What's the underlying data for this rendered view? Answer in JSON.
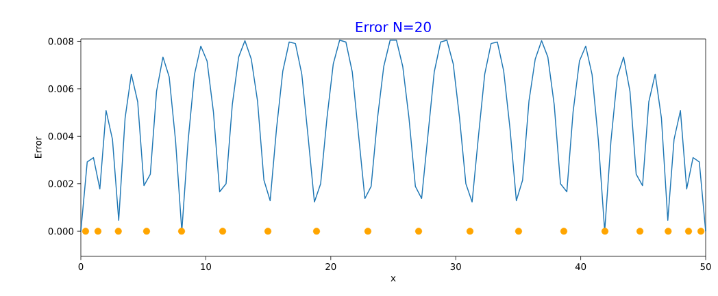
{
  "chart_data": {
    "type": "line",
    "title": "Error N=20",
    "xlabel": "x",
    "ylabel": "Error",
    "xlim": [
      0,
      50
    ],
    "ylim": [
      -0.00106,
      0.0081
    ],
    "xticks": [
      0,
      10,
      20,
      30,
      40,
      50
    ],
    "yticks": [
      {
        "value": 0,
        "label": "0.000"
      },
      {
        "value": 0.002,
        "label": "0.002"
      },
      {
        "value": 0.004,
        "label": "0.004"
      },
      {
        "value": 0.006,
        "label": "0.006"
      },
      {
        "value": 0.008,
        "label": "0.008"
      }
    ],
    "series": [
      {
        "color": "#1f77b4",
        "marker": "none",
        "x": [
          0,
          0.51,
          1.01,
          1.52,
          2.02,
          2.53,
          3.03,
          3.54,
          4.04,
          4.55,
          5.05,
          5.56,
          6.06,
          6.57,
          7.07,
          7.58,
          8.08,
          8.59,
          9.09,
          9.6,
          10.1,
          10.61,
          11.11,
          11.62,
          12.12,
          12.63,
          13.13,
          13.64,
          14.14,
          14.65,
          15.15,
          15.66,
          16.16,
          16.67,
          17.17,
          17.68,
          18.18,
          18.69,
          19.19,
          19.7,
          20.2,
          20.71,
          21.21,
          21.72,
          22.22,
          22.73,
          23.23,
          23.74,
          24.24,
          24.75,
          25.25,
          25.76,
          26.26,
          26.77,
          27.27,
          27.78,
          28.28,
          28.79,
          29.29,
          29.8,
          30.3,
          30.81,
          31.31,
          31.82,
          32.32,
          32.83,
          33.33,
          33.84,
          34.34,
          34.85,
          35.35,
          35.86,
          36.36,
          36.87,
          37.37,
          37.88,
          38.38,
          38.89,
          39.39,
          39.9,
          40.4,
          40.91,
          41.41,
          41.92,
          42.42,
          42.93,
          43.43,
          43.94,
          44.44,
          44.95,
          45.45,
          45.96,
          46.46,
          46.97,
          47.47,
          47.98,
          48.48,
          48.99,
          49.49,
          50
        ],
        "values": [
          0,
          0.00292,
          0.0031,
          0.00178,
          0.00508,
          0.00387,
          0.00046,
          0.00476,
          0.00662,
          0.00545,
          0.00192,
          0.0024,
          0.0059,
          0.00734,
          0.0065,
          0.0038,
          0,
          0.00384,
          0.0066,
          0.0078,
          0.00717,
          0.00502,
          0.00166,
          0.002,
          0.00533,
          0.00734,
          0.00803,
          0.00725,
          0.00548,
          0.00215,
          0.00129,
          0.00433,
          0.00674,
          0.00797,
          0.00791,
          0.00662,
          0.00401,
          0.00123,
          0.002,
          0.00479,
          0.00705,
          0.00805,
          0.00797,
          0.00671,
          0.00407,
          0.00138,
          0.00189,
          0.00476,
          0.00694,
          0.00805,
          0.00805,
          0.00694,
          0.00476,
          0.00189,
          0.00138,
          0.00407,
          0.00671,
          0.00797,
          0.00805,
          0.00705,
          0.00479,
          0.002,
          0.00123,
          0.00401,
          0.00662,
          0.00791,
          0.00797,
          0.00674,
          0.00433,
          0.00129,
          0.00215,
          0.00548,
          0.00725,
          0.00803,
          0.00734,
          0.00533,
          0.002,
          0.00166,
          0.00502,
          0.00717,
          0.0078,
          0.0066,
          0.00384,
          0,
          0.0038,
          0.0065,
          0.00734,
          0.0059,
          0.0024,
          0.00192,
          0.00545,
          0.00662,
          0.00476,
          0.00046,
          0.00387,
          0.00508,
          0.00178,
          0.0031,
          0.00292,
          0
        ]
      },
      {
        "type": "scatter",
        "color": "#ffa500",
        "marker": "circle",
        "x": [
          0.38,
          1.37,
          3.0,
          5.26,
          8.06,
          11.35,
          14.97,
          18.86,
          22.97,
          27.03,
          31.14,
          35.03,
          38.65,
          41.94,
          44.74,
          47.0,
          48.63,
          49.62
        ],
        "values": [
          0,
          0,
          0,
          0,
          0,
          0,
          0,
          0,
          0,
          0,
          0,
          0,
          0,
          0,
          0,
          0,
          0,
          0
        ]
      }
    ]
  }
}
